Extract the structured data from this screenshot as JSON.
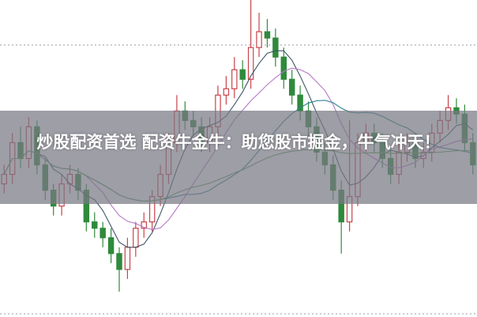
{
  "overlay": {
    "title": "炒股配资首选 配资牛金牛：助您股市掘金，牛气冲天！"
  },
  "colors": {
    "up": "#c8434a",
    "down": "#2f8a3c",
    "grid": "#9a9aa4",
    "ma": [
      "#3f5566",
      "#b57ac6",
      "#2b7f8e",
      "#5e9f5a"
    ]
  },
  "chart_data": {
    "type": "candlestick",
    "grid": true,
    "ylim": [
      0,
      100
    ],
    "moving_averages": [
      5,
      10,
      20,
      60
    ],
    "ohlc": [
      [
        42,
        48,
        39,
        45
      ],
      [
        45,
        58,
        42,
        55
      ],
      [
        55,
        60,
        47,
        50
      ],
      [
        50,
        63,
        47,
        60
      ],
      [
        60,
        62,
        45,
        48
      ],
      [
        48,
        50,
        37,
        40
      ],
      [
        40,
        42,
        32,
        35
      ],
      [
        35,
        45,
        32,
        42
      ],
      [
        42,
        48,
        39,
        45
      ],
      [
        45,
        47,
        37,
        40
      ],
      [
        40,
        42,
        27,
        30
      ],
      [
        30,
        33,
        25,
        28
      ],
      [
        28,
        30,
        22,
        25
      ],
      [
        25,
        28,
        17,
        20
      ],
      [
        20,
        22,
        8,
        15
      ],
      [
        15,
        25,
        12,
        22
      ],
      [
        22,
        30,
        19,
        28
      ],
      [
        28,
        33,
        25,
        30
      ],
      [
        30,
        40,
        27,
        38
      ],
      [
        38,
        48,
        35,
        45
      ],
      [
        45,
        58,
        42,
        55
      ],
      [
        55,
        70,
        52,
        65
      ],
      [
        65,
        68,
        59,
        62
      ],
      [
        62,
        65,
        57,
        60
      ],
      [
        60,
        63,
        52,
        55
      ],
      [
        55,
        63,
        52,
        60
      ],
      [
        60,
        73,
        57,
        70
      ],
      [
        70,
        76,
        67,
        72
      ],
      [
        72,
        82,
        69,
        78
      ],
      [
        78,
        81,
        72,
        75
      ],
      [
        75,
        100,
        72,
        85
      ],
      [
        85,
        96,
        82,
        90
      ],
      [
        90,
        94,
        85,
        88
      ],
      [
        88,
        91,
        79,
        82
      ],
      [
        82,
        85,
        72,
        75
      ],
      [
        75,
        78,
        67,
        70
      ],
      [
        70,
        73,
        62,
        65
      ],
      [
        65,
        68,
        57,
        60
      ],
      [
        60,
        63,
        49,
        52
      ],
      [
        52,
        55,
        45,
        48
      ],
      [
        48,
        51,
        37,
        40
      ],
      [
        40,
        43,
        20,
        30
      ],
      [
        30,
        62,
        27,
        38
      ],
      [
        38,
        58,
        35,
        55
      ],
      [
        55,
        61,
        52,
        58
      ],
      [
        58,
        61,
        52,
        55
      ],
      [
        55,
        58,
        47,
        50
      ],
      [
        50,
        53,
        42,
        45
      ],
      [
        45,
        55,
        42,
        52
      ],
      [
        52,
        58,
        49,
        55
      ],
      [
        55,
        58,
        47,
        50
      ],
      [
        50,
        55,
        47,
        52
      ],
      [
        52,
        61,
        49,
        58
      ],
      [
        58,
        65,
        55,
        62
      ],
      [
        62,
        70,
        59,
        66
      ],
      [
        66,
        69,
        61,
        64
      ],
      [
        64,
        67,
        52,
        55
      ],
      [
        55,
        58,
        45,
        48
      ]
    ]
  }
}
